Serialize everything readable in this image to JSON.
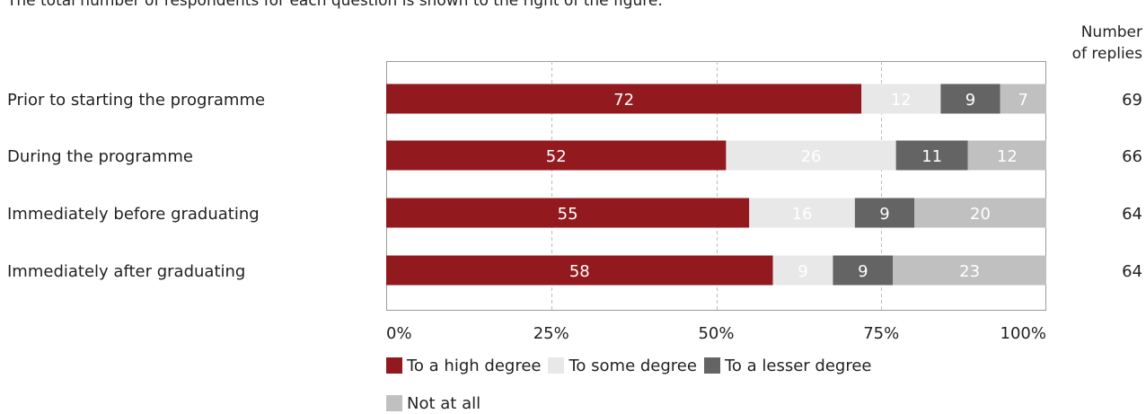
{
  "caption": "The total number of respondents for each question is shown to the right of the figure.",
  "replies_header": {
    "line1": "Number",
    "line2": "of replies"
  },
  "chart_data": {
    "type": "bar",
    "orientation": "horizontal",
    "stacked": true,
    "stacked_percent": true,
    "categories": [
      "Prior to starting the programme",
      "During the programme",
      "Immediately before graduating",
      "Immediately after graduating"
    ],
    "series": [
      {
        "name": "To a high degree",
        "values": [
          72,
          52,
          55,
          58
        ],
        "color": "#921a1f",
        "label_color": "#ffffff"
      },
      {
        "name": "To some degree",
        "values": [
          12,
          26,
          16,
          9
        ],
        "color": "#e8e8e8",
        "label_color": "#ffffff"
      },
      {
        "name": "To a lesser degree",
        "values": [
          9,
          11,
          9,
          9
        ],
        "color": "#646464",
        "label_color": "#ffffff"
      },
      {
        "name": "Not at all",
        "values": [
          7,
          12,
          20,
          23
        ],
        "color": "#c0c0c0",
        "label_color": "#ffffff"
      }
    ],
    "replies": [
      69,
      66,
      64,
      64
    ],
    "xlim": [
      0,
      100
    ],
    "xticks": [
      "0%",
      "25%",
      "50%",
      "75%",
      "100%"
    ],
    "grid": "vertical dashed",
    "legend_position": "bottom"
  }
}
